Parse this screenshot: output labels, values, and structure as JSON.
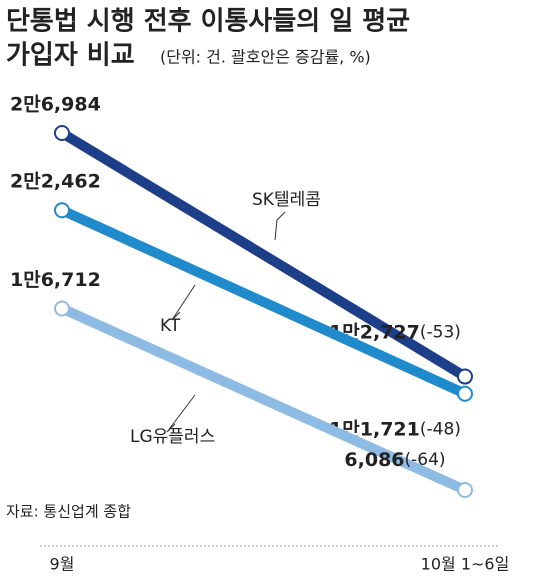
{
  "chart_data": {
    "type": "line",
    "title": "단통법 시행 전후 이통사들의 일 평균",
    "title_line2": "가입자 비교",
    "subtitle": "(단위: 건. 괄호안은 증감률, %)",
    "source": "자료: 통신업계 종합",
    "categories": [
      "9월",
      "10월 1~6일"
    ],
    "series": [
      {
        "name": "SK텔레콤",
        "color": "#1d3f8a",
        "values": [
          26984,
          12727
        ],
        "value_labels": [
          "2만6,984",
          "1만2,727"
        ],
        "change_label": "(-53)"
      },
      {
        "name": "KT",
        "color": "#1f8bcc",
        "values": [
          22462,
          11721
        ],
        "value_labels": [
          "2만2,462",
          "1만1,721"
        ],
        "change_label": "(-48)"
      },
      {
        "name": "LG유플러스",
        "color": "#8dbbe3",
        "values": [
          16712,
          6086
        ],
        "value_labels": [
          "1만6,712",
          "6,086"
        ],
        "change_label": "(-64)"
      }
    ]
  }
}
